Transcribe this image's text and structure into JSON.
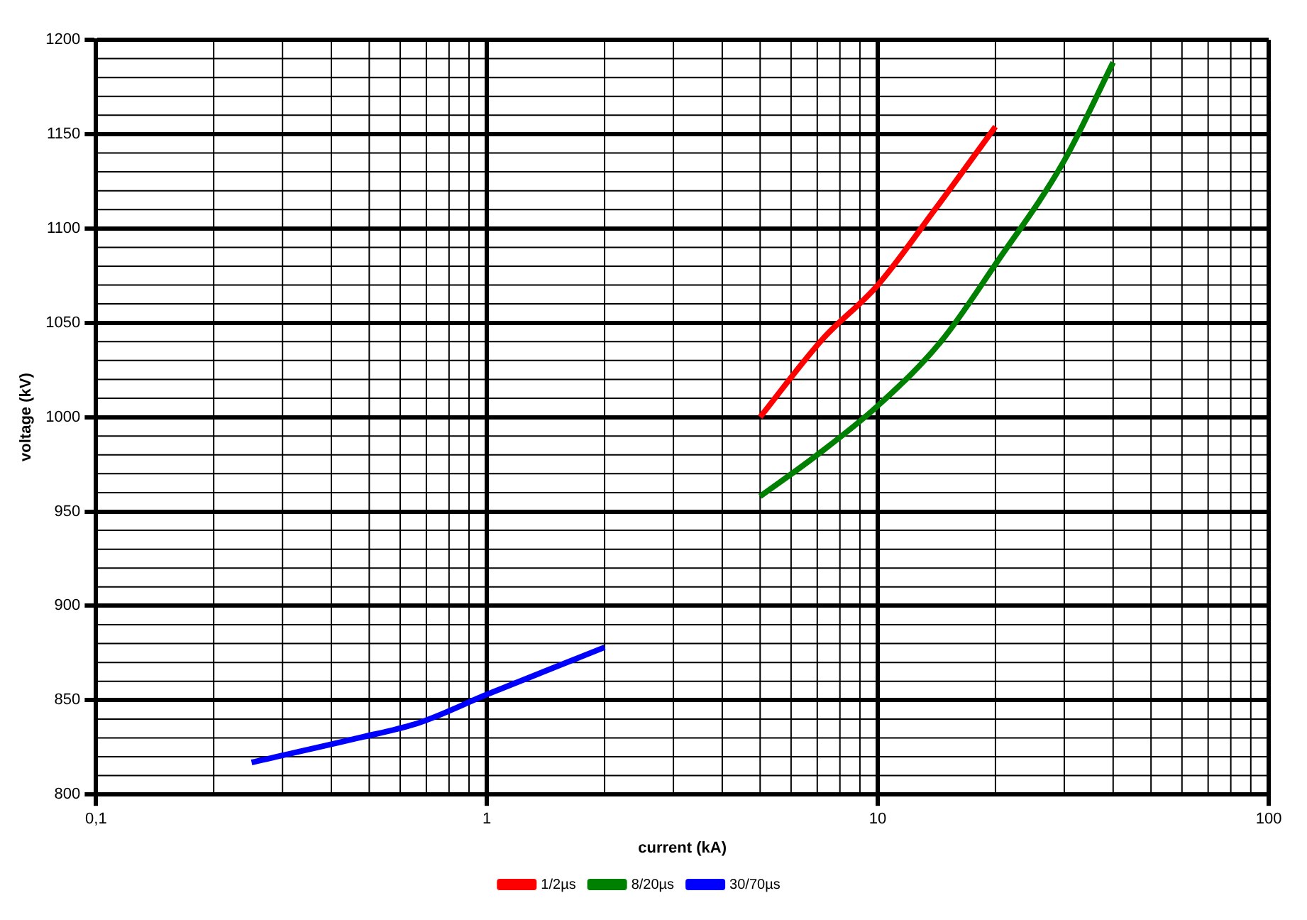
{
  "chart_data": {
    "type": "line",
    "xlabel": "current (kA)",
    "ylabel": "voltage (kV)",
    "log": "x",
    "grid": true,
    "legend": "bottom",
    "marker": "none",
    "line_style": "solid",
    "xlim": [
      0.1,
      100
    ],
    "xticks": [
      {
        "value": 0.1,
        "label": "0,1"
      },
      1,
      10,
      100
    ],
    "ylim": [
      800,
      1200
    ],
    "yticks": [
      800,
      850,
      900,
      950,
      1000,
      1050,
      1100,
      1150,
      1200
    ],
    "series": [
      {
        "name": "1/2µs",
        "color": "#ff0000",
        "x": [
          5,
          7.2,
          10,
          14,
          20
        ],
        "values": [
          1000,
          1041,
          1070,
          1110,
          1154
        ]
      },
      {
        "name": "8/20µs",
        "color": "#008000",
        "x": [
          5,
          7,
          10,
          14.5,
          20,
          30,
          40
        ],
        "values": [
          958,
          980,
          1006,
          1040,
          1081,
          1136,
          1188
        ]
      },
      {
        "name": "30/70µs",
        "color": "#0000ff",
        "x": [
          0.25,
          0.47,
          0.67,
          1,
          2
        ],
        "values": [
          817,
          830,
          838,
          853,
          878
        ]
      }
    ]
  }
}
